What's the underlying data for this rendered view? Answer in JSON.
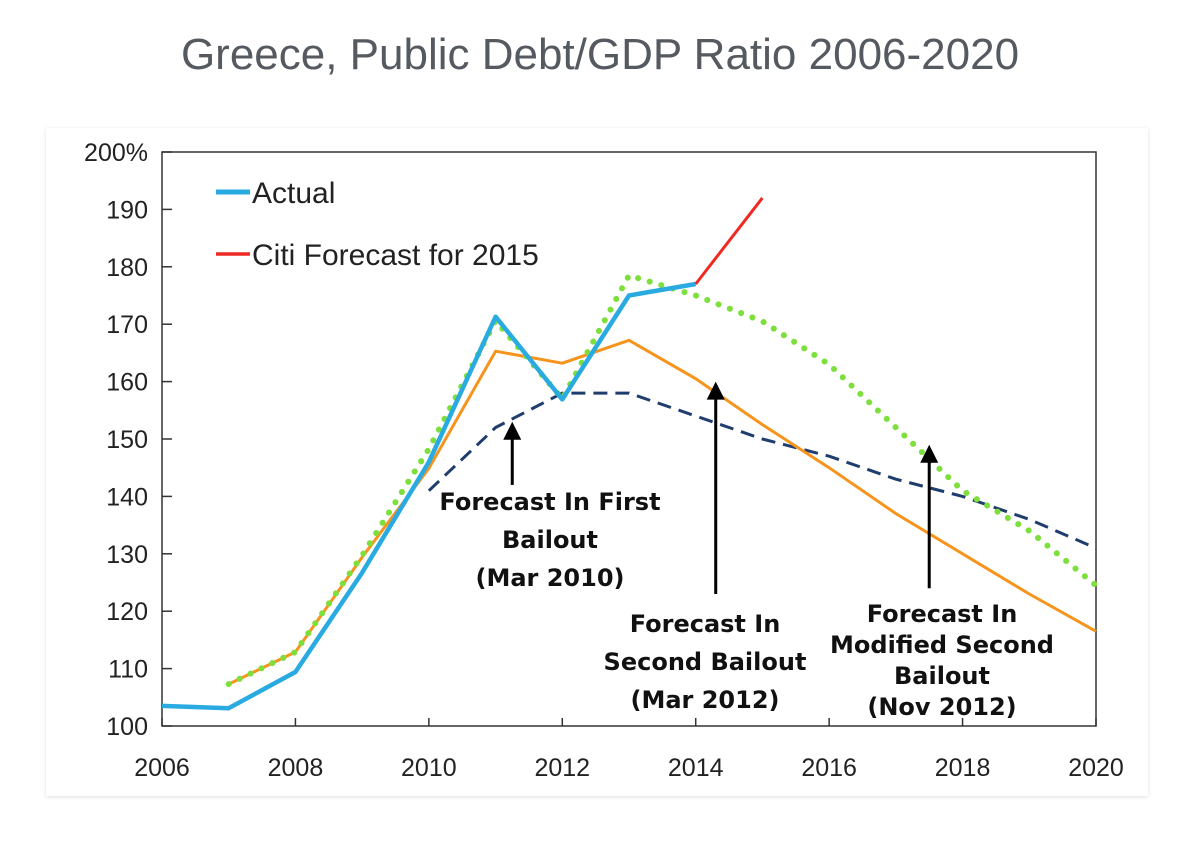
{
  "chart_data": {
    "type": "line",
    "title": "Greece, Public Debt/GDP Ratio 2006-2020",
    "xlabel": "",
    "ylabel": "",
    "xlim": [
      2006,
      2020
    ],
    "ylim": [
      100,
      200
    ],
    "x_ticks": [
      2006,
      2008,
      2010,
      2012,
      2014,
      2016,
      2018,
      2020
    ],
    "y_ticks": [
      100,
      110,
      120,
      130,
      140,
      150,
      160,
      170,
      180,
      190,
      200
    ],
    "y_tick_labels": [
      "100",
      "110",
      "120",
      "130",
      "140",
      "150",
      "160",
      "170",
      "180",
      "190",
      "200%"
    ],
    "x_tick_labels": [
      "2006",
      "2008",
      "2010",
      "2012",
      "2014",
      "2016",
      "2018",
      "2020"
    ],
    "legend": {
      "position": "top-left",
      "entries": [
        "Actual",
        "Citi Forecast for 2015"
      ]
    },
    "series": [
      {
        "name": "Actual",
        "color": "#29abe2",
        "style": "solid",
        "in_legend": true,
        "x": [
          2006,
          2007,
          2008,
          2009,
          2010,
          2011,
          2012,
          2013,
          2014
        ],
        "values": [
          103.5,
          103.1,
          109.4,
          126.7,
          146,
          171.3,
          156.9,
          175,
          177
        ]
      },
      {
        "name": "Citi Forecast for 2015",
        "color": "#ee2a24",
        "style": "solid",
        "in_legend": true,
        "x": [
          2014,
          2015
        ],
        "values": [
          177,
          192
        ]
      },
      {
        "name": "Forecast In First Bailout (Mar 2010)",
        "color": "#1f3d6d",
        "style": "dashed",
        "in_legend": false,
        "x": [
          2010,
          2011,
          2012,
          2013,
          2014,
          2015,
          2016,
          2017,
          2018,
          2019,
          2020
        ],
        "values": [
          141,
          152,
          158,
          158,
          154,
          150,
          147,
          143,
          140,
          136,
          131
        ]
      },
      {
        "name": "Forecast In Second Bailout (Mar 2012)",
        "color": "#f7941d",
        "style": "solid",
        "in_legend": false,
        "x": [
          2007,
          2008,
          2009,
          2010,
          2011,
          2012,
          2013,
          2014,
          2015,
          2016,
          2017,
          2018,
          2019,
          2020
        ],
        "values": [
          107.3,
          112.9,
          129.4,
          144.9,
          165.3,
          163.2,
          167.2,
          160.5,
          152.5,
          145,
          137,
          130,
          123,
          116.5
        ]
      },
      {
        "name": "Forecast In Modified Second Bailout (Nov 2012)",
        "color": "#7ddf3c",
        "style": "dotted",
        "in_legend": false,
        "x": [
          2007,
          2008,
          2009,
          2010,
          2011,
          2012,
          2013,
          2014,
          2015,
          2016,
          2017,
          2018,
          2019,
          2020
        ],
        "values": [
          107.3,
          112.9,
          129.7,
          148.3,
          170.6,
          157,
          178.5,
          175,
          170.5,
          163,
          152,
          141,
          134,
          124.5
        ]
      }
    ],
    "annotations": [
      {
        "lines": [
          "Forecast In First",
          "Bailout",
          "(Mar 2010)"
        ],
        "arrow_x": 2011.25,
        "arrow_from": 142,
        "arrow_to": 153
      },
      {
        "lines": [
          "Forecast In",
          "Second Bailout",
          "(Mar 2012)"
        ],
        "arrow_x": 2014.3,
        "arrow_from": 123,
        "arrow_to": 160
      },
      {
        "lines": [
          "Forecast In",
          "Modified Second",
          "Bailout",
          "(Nov 2012)"
        ],
        "arrow_x": 2017.5,
        "arrow_from": 124,
        "arrow_to": 149
      }
    ]
  }
}
